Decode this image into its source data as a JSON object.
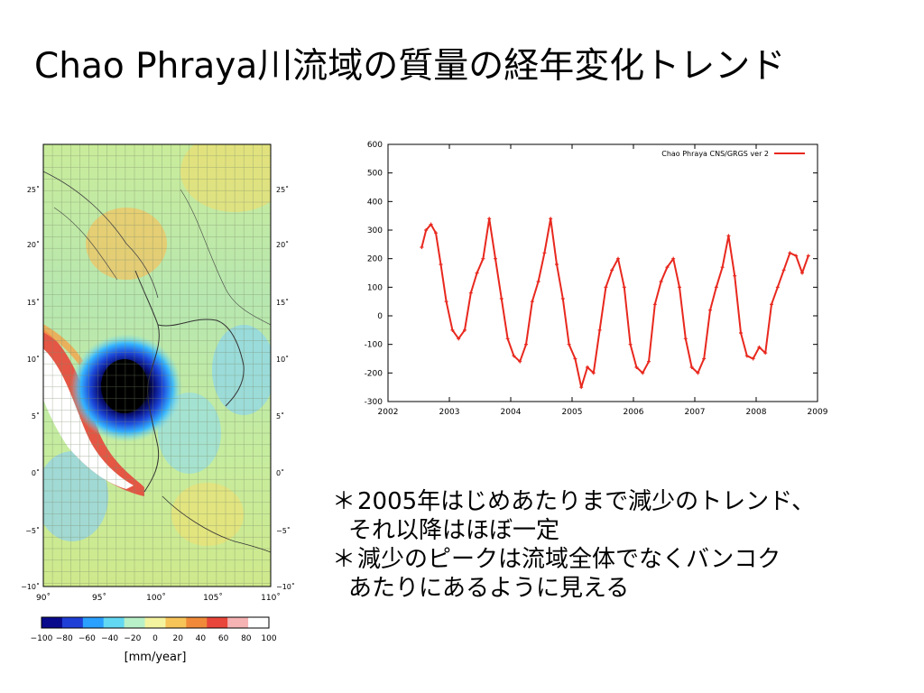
{
  "slide": {
    "title": "Chao Phraya川流域の質量の経年変化トレンド"
  },
  "map": {
    "lat_labels": [
      "25˚",
      "20˚",
      "15˚",
      "10˚",
      "5˚",
      "0˚",
      "−5˚",
      "−10˚"
    ],
    "lon_labels": [
      "90˚",
      "95˚",
      "100˚",
      "105˚",
      "110˚"
    ],
    "colorbar_ticks": [
      "−100",
      "−80",
      "−60",
      "−40",
      "−20",
      "0",
      "20",
      "40",
      "60",
      "80",
      "100"
    ],
    "colorbar_colors": [
      "#0a0a8c",
      "#1f3fd6",
      "#2aa0ff",
      "#63d8f2",
      "#b8f0c8",
      "#f4f4a0",
      "#f7c45a",
      "#f08a3a",
      "#e8463a",
      "#f5b3b3",
      "#ffffff"
    ],
    "unit_label": "[mm/year]"
  },
  "chart_data": {
    "type": "line",
    "title": "",
    "xlabel": "",
    "ylabel": "",
    "xlim": [
      2002,
      2009
    ],
    "ylim": [
      -300,
      600
    ],
    "xticks": [
      "2002",
      "2003",
      "2004",
      "2005",
      "2006",
      "2007",
      "2008",
      "2009"
    ],
    "yticks": [
      "600",
      "500",
      "400",
      "300",
      "200",
      "100",
      "0",
      "-100",
      "-200",
      "-300"
    ],
    "legend_position": "top-right",
    "line_color": "#e8281e",
    "series": [
      {
        "name": "Chao Phraya CNS/GRGS ver 2",
        "x": [
          2002.55,
          2002.62,
          2002.7,
          2002.78,
          2002.86,
          2002.95,
          2003.05,
          2003.15,
          2003.25,
          2003.35,
          2003.45,
          2003.55,
          2003.65,
          2003.75,
          2003.85,
          2003.95,
          2004.05,
          2004.15,
          2004.25,
          2004.35,
          2004.45,
          2004.55,
          2004.65,
          2004.75,
          2004.85,
          2004.95,
          2005.05,
          2005.15,
          2005.25,
          2005.35,
          2005.45,
          2005.55,
          2005.65,
          2005.75,
          2005.85,
          2005.95,
          2006.05,
          2006.15,
          2006.25,
          2006.35,
          2006.45,
          2006.55,
          2006.65,
          2006.75,
          2006.85,
          2006.95,
          2007.05,
          2007.15,
          2007.25,
          2007.35,
          2007.45,
          2007.55,
          2007.65,
          2007.75,
          2007.85,
          2007.95,
          2008.05,
          2008.15,
          2008.25,
          2008.35,
          2008.45,
          2008.55,
          2008.65,
          2008.75,
          2008.85
        ],
        "y": [
          240,
          300,
          320,
          290,
          180,
          50,
          -50,
          -80,
          -50,
          80,
          150,
          200,
          340,
          200,
          60,
          -80,
          -140,
          -160,
          -100,
          50,
          120,
          220,
          340,
          180,
          60,
          -100,
          -150,
          -250,
          -180,
          -200,
          -50,
          100,
          160,
          200,
          100,
          -100,
          -180,
          -200,
          -160,
          40,
          120,
          170,
          200,
          100,
          -80,
          -180,
          -200,
          -150,
          20,
          100,
          170,
          280,
          140,
          -60,
          -140,
          -150,
          -110,
          -130,
          40,
          100,
          160,
          220,
          210,
          150,
          210
        ]
      }
    ]
  },
  "notes": {
    "b1_mark": "＊",
    "b1_line1": "2005年はじめあたりまで減少のトレンド、",
    "b1_line2": "それ以降はほぼ一定",
    "b2_mark": "＊",
    "b2_line1": "減少のピークは流域全体でなくバンコク",
    "b2_line2": "あたりにあるように見える"
  }
}
